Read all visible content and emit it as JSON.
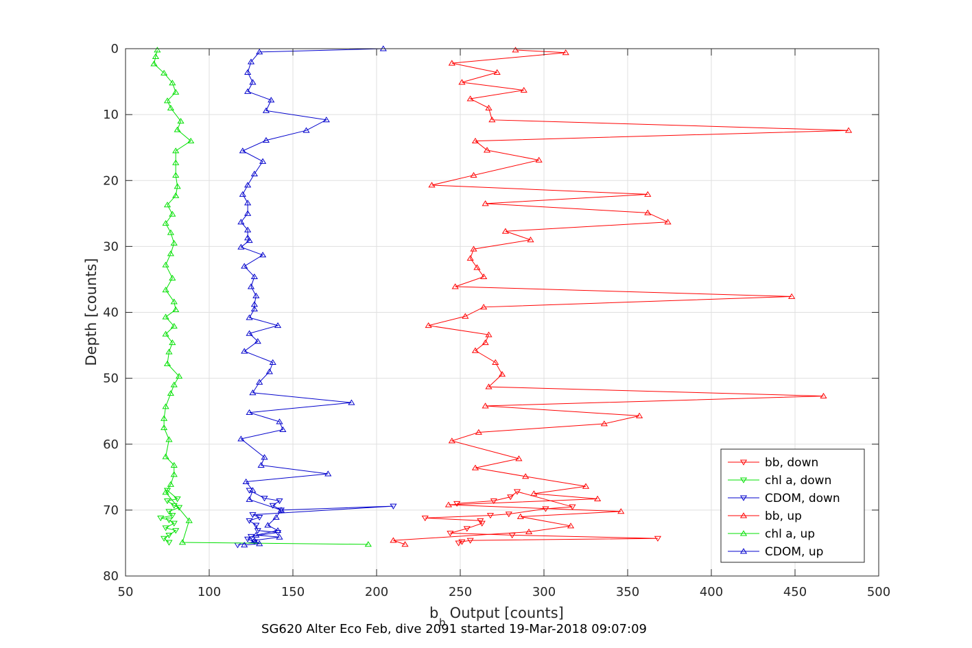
{
  "chart_data": {
    "type": "line",
    "title": "",
    "caption": "SG620 Alter Eco Feb, dive 2091 started 19-Mar-2018 09:07:09",
    "xlabel_main": "b",
    "xlabel_sub": "b",
    "xlabel_rest": " Output [counts]",
    "ylabel": "Depth [counts]",
    "xlim": [
      50,
      500
    ],
    "ylim": [
      0,
      80
    ],
    "y_reversed": true,
    "grid": true,
    "legend_position": "bottom-right",
    "xticks": [
      50,
      100,
      150,
      200,
      250,
      300,
      350,
      400,
      450,
      500
    ],
    "yticks": [
      0,
      10,
      20,
      30,
      40,
      50,
      60,
      70,
      80
    ],
    "series": [
      {
        "name": "bb, down",
        "color": "#ff0000",
        "marker": "triangle-down",
        "points": [
          [
            248,
            69
          ],
          [
            270,
            68.6
          ],
          [
            280,
            68
          ],
          [
            284,
            67.2
          ],
          [
            317,
            69.5
          ],
          [
            301,
            69.8
          ],
          [
            279,
            70.6
          ],
          [
            268,
            70.8
          ],
          [
            229,
            71.2
          ],
          [
            262,
            71.6
          ],
          [
            263,
            72
          ],
          [
            254,
            72.8
          ],
          [
            244,
            73.5
          ],
          [
            281,
            73.8
          ],
          [
            368,
            74.3
          ],
          [
            256,
            74.6
          ],
          [
            251,
            74.8
          ],
          [
            249,
            75
          ]
        ]
      },
      {
        "name": "chl a, down",
        "color": "#00e000",
        "marker": "triangle-down",
        "points": [
          [
            75,
            67
          ],
          [
            81,
            68.3
          ],
          [
            75,
            68.6
          ],
          [
            79,
            69.3
          ],
          [
            82,
            69.6
          ],
          [
            76,
            70.2
          ],
          [
            78,
            70.8
          ],
          [
            71,
            71.2
          ],
          [
            76,
            71.5
          ],
          [
            79,
            72
          ],
          [
            74,
            72.7
          ],
          [
            80,
            73.1
          ],
          [
            76,
            73.8
          ],
          [
            73,
            74.3
          ],
          [
            76,
            74.9
          ]
        ]
      },
      {
        "name": "CDOM, down",
        "color": "#0000cc",
        "marker": "triangle-down",
        "points": [
          [
            124,
            67
          ],
          [
            133,
            68.2
          ],
          [
            142,
            68.6
          ],
          [
            138,
            69.3
          ],
          [
            143,
            70
          ],
          [
            210,
            69.4
          ],
          [
            126,
            70.7
          ],
          [
            130,
            71.1
          ],
          [
            124,
            71.6
          ],
          [
            128,
            72.3
          ],
          [
            129,
            73.1
          ],
          [
            141,
            73.4
          ],
          [
            125,
            74
          ],
          [
            123,
            74.4
          ],
          [
            127,
            74.8
          ],
          [
            117,
            75.3
          ]
        ]
      },
      {
        "name": "bb, up",
        "color": "#ff0000",
        "marker": "triangle-up",
        "points": [
          [
            283,
            0.2
          ],
          [
            313,
            0.6
          ],
          [
            245,
            2.2
          ],
          [
            272,
            3.6
          ],
          [
            251,
            5.1
          ],
          [
            288,
            6.3
          ],
          [
            256,
            7.6
          ],
          [
            267,
            9
          ],
          [
            269,
            10.8
          ],
          [
            482,
            12.4
          ],
          [
            259,
            14
          ],
          [
            266,
            15.4
          ],
          [
            297,
            16.9
          ],
          [
            258,
            19.2
          ],
          [
            233,
            20.7
          ],
          [
            362,
            22.1
          ],
          [
            265,
            23.5
          ],
          [
            362,
            24.9
          ],
          [
            374,
            26.3
          ],
          [
            277,
            27.7
          ],
          [
            292,
            29
          ],
          [
            258,
            30.4
          ],
          [
            256,
            31.8
          ],
          [
            260,
            33.2
          ],
          [
            264,
            34.6
          ],
          [
            247,
            36.1
          ],
          [
            448,
            37.6
          ],
          [
            264,
            39.2
          ],
          [
            253,
            40.6
          ],
          [
            231,
            42
          ],
          [
            267,
            43.4
          ],
          [
            265,
            44.6
          ],
          [
            259,
            45.8
          ],
          [
            271,
            47.6
          ],
          [
            275,
            49.4
          ],
          [
            267,
            51.3
          ],
          [
            467,
            52.7
          ],
          [
            265,
            54.2
          ],
          [
            357,
            55.7
          ],
          [
            336,
            56.9
          ],
          [
            261,
            58.2
          ],
          [
            245,
            59.5
          ],
          [
            285,
            62.2
          ],
          [
            259,
            63.6
          ],
          [
            289,
            64.9
          ],
          [
            325,
            66.4
          ],
          [
            294,
            67.5
          ],
          [
            332,
            68.3
          ],
          [
            243,
            69.2
          ],
          [
            346,
            70.2
          ],
          [
            286,
            71
          ],
          [
            316,
            72.4
          ],
          [
            291,
            73.3
          ],
          [
            210,
            74.6
          ],
          [
            217,
            75.2
          ]
        ]
      },
      {
        "name": "chl a, up",
        "color": "#00e000",
        "marker": "triangle-up",
        "points": [
          [
            69,
            0.2
          ],
          [
            68,
            1.2
          ],
          [
            67,
            2.3
          ],
          [
            73,
            3.7
          ],
          [
            78,
            5.2
          ],
          [
            80,
            6.6
          ],
          [
            75,
            7.9
          ],
          [
            77,
            9
          ],
          [
            83,
            11
          ],
          [
            81,
            12.3
          ],
          [
            89,
            14
          ],
          [
            80,
            15.5
          ],
          [
            80,
            17.3
          ],
          [
            80,
            19.2
          ],
          [
            81,
            20.9
          ],
          [
            80,
            22.3
          ],
          [
            75,
            23.7
          ],
          [
            78,
            25.1
          ],
          [
            74,
            26.5
          ],
          [
            77,
            27.9
          ],
          [
            79,
            29.5
          ],
          [
            77,
            31.1
          ],
          [
            74,
            32.8
          ],
          [
            78,
            34.8
          ],
          [
            74,
            36.6
          ],
          [
            79,
            38.4
          ],
          [
            80,
            39.6
          ],
          [
            74,
            40.7
          ],
          [
            79,
            42.1
          ],
          [
            74,
            43.3
          ],
          [
            78,
            44.6
          ],
          [
            76,
            46
          ],
          [
            75,
            47.8
          ],
          [
            82,
            49.7
          ],
          [
            79,
            51
          ],
          [
            77,
            52.3
          ],
          [
            74,
            54.3
          ],
          [
            73,
            56.1
          ],
          [
            73,
            57.5
          ],
          [
            76,
            59.3
          ],
          [
            74,
            61.9
          ],
          [
            79,
            63.2
          ],
          [
            79,
            64.6
          ],
          [
            77,
            66.1
          ],
          [
            74,
            67.3
          ],
          [
            88,
            71.6
          ],
          [
            84,
            74.9
          ],
          [
            195,
            75.2
          ]
        ]
      },
      {
        "name": "CDOM, up",
        "color": "#0000cc",
        "marker": "triangle-up",
        "points": [
          [
            204,
            0
          ],
          [
            130,
            0.5
          ],
          [
            125,
            2
          ],
          [
            123,
            3.6
          ],
          [
            126,
            5.1
          ],
          [
            123,
            6.5
          ],
          [
            137,
            7.8
          ],
          [
            134,
            9.4
          ],
          [
            170,
            10.8
          ],
          [
            158,
            12.4
          ],
          [
            134,
            13.9
          ],
          [
            120,
            15.5
          ],
          [
            132,
            17.1
          ],
          [
            127,
            19
          ],
          [
            123,
            20.7
          ],
          [
            120,
            22.1
          ],
          [
            123,
            23.4
          ],
          [
            123,
            25
          ],
          [
            119,
            26.3
          ],
          [
            123,
            27.5
          ],
          [
            123,
            28.7
          ],
          [
            124,
            29.1
          ],
          [
            119,
            30.1
          ],
          [
            132,
            31.3
          ],
          [
            121,
            33
          ],
          [
            127,
            34.6
          ],
          [
            125,
            36.1
          ],
          [
            128,
            37.5
          ],
          [
            127,
            38.8
          ],
          [
            127,
            39.5
          ],
          [
            124,
            40.8
          ],
          [
            141,
            42
          ],
          [
            124,
            43.2
          ],
          [
            129,
            44.4
          ],
          [
            121,
            45.9
          ],
          [
            138,
            47.6
          ],
          [
            136,
            49
          ],
          [
            130,
            50.6
          ],
          [
            126,
            52.2
          ],
          [
            185,
            53.7
          ],
          [
            124,
            55.2
          ],
          [
            142,
            56.6
          ],
          [
            144,
            57.8
          ],
          [
            119,
            59.2
          ],
          [
            133,
            62
          ],
          [
            131,
            63.2
          ],
          [
            171,
            64.5
          ],
          [
            122,
            65.7
          ],
          [
            126,
            67
          ],
          [
            124,
            68.4
          ],
          [
            143,
            70
          ],
          [
            140,
            71.1
          ],
          [
            135,
            72.3
          ],
          [
            141,
            73.1
          ],
          [
            128,
            73.8
          ],
          [
            142,
            74.1
          ],
          [
            127,
            74.6
          ],
          [
            130,
            75.1
          ],
          [
            121,
            75.3
          ]
        ]
      }
    ]
  }
}
